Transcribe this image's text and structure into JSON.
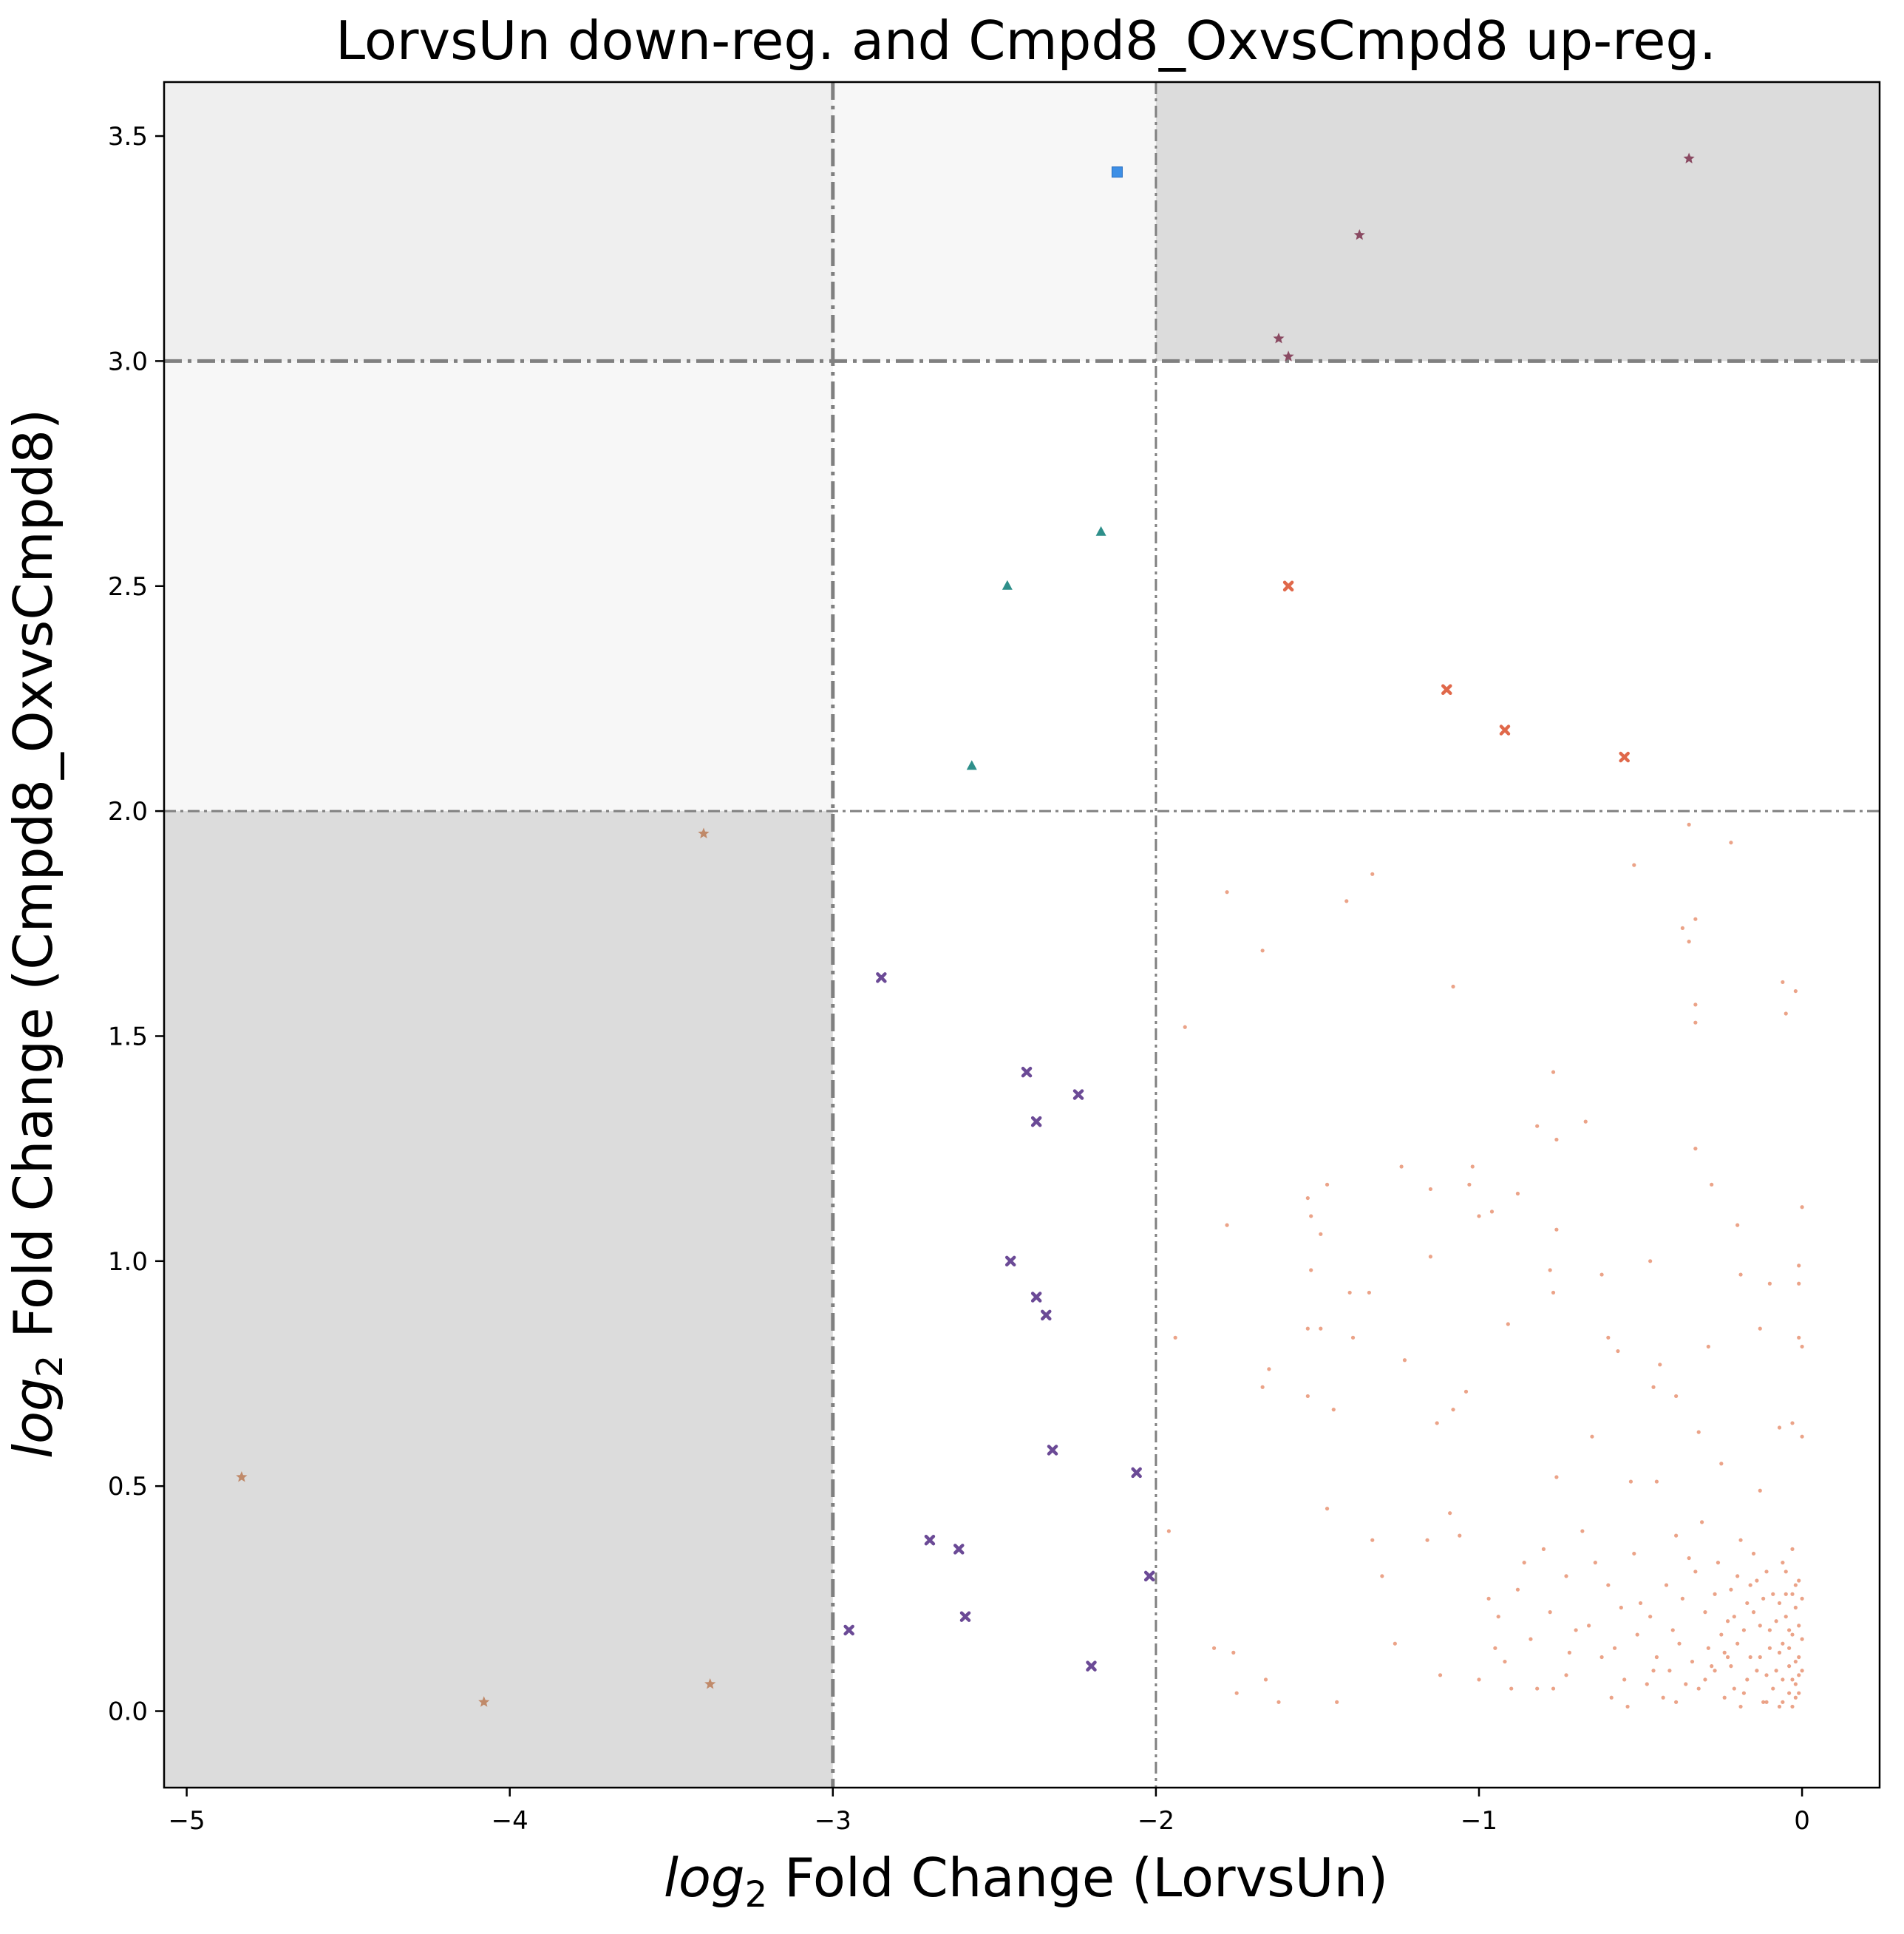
{
  "chart_data": {
    "type": "scatter",
    "title": "LorvsUn down-reg. and Cmpd8_OxvsCmpd8 up-reg.",
    "xlabel": {
      "log": "log",
      "sub": "2",
      "rest": " Fold Change (LorvsUn)"
    },
    "ylabel": {
      "log": "log",
      "sub": "2",
      "rest": " Fold Change (Cmpd8_OxvsCmpd8)"
    },
    "xlim": [
      -5.07,
      0.24
    ],
    "ylim": [
      -0.17,
      3.62
    ],
    "x_ticks": [
      -5,
      -4,
      -3,
      -2,
      -1,
      0
    ],
    "x_tick_labels": [
      "−5",
      "−4",
      "−3",
      "−2",
      "−1",
      "0"
    ],
    "y_ticks": [
      0.0,
      0.5,
      1.0,
      1.5,
      2.0,
      2.5,
      3.0,
      3.5
    ],
    "y_tick_labels": [
      "0.0",
      "0.5",
      "1.0",
      "1.5",
      "2.0",
      "2.5",
      "3.0",
      "3.5"
    ],
    "grid": false,
    "legend": "none",
    "threshold_lines": {
      "x": [
        {
          "value": -3,
          "style": "thick"
        },
        {
          "value": -2,
          "style": "thin"
        }
      ],
      "y": [
        {
          "value": 3,
          "style": "thick"
        },
        {
          "value": 2,
          "style": "thin"
        }
      ]
    },
    "shaded_regions": [
      {
        "x": [
          -5.07,
          -3
        ],
        "y": [
          2,
          3.62
        ],
        "color": "#efefef"
      },
      {
        "x": [
          -3,
          -2
        ],
        "y": [
          3,
          3.62
        ],
        "color": "#f7f7f7"
      },
      {
        "x": [
          -5.07,
          -3
        ],
        "y": [
          2,
          3
        ],
        "color": "#f7f7f7"
      },
      {
        "x": [
          -2,
          0.24
        ],
        "y": [
          3,
          3.62
        ],
        "color": "#dcdcdc"
      },
      {
        "x": [
          -5.07,
          -3
        ],
        "y": [
          -0.17,
          2
        ],
        "color": "#dcdcdc"
      }
    ],
    "series": [
      {
        "marker": "square",
        "color": "#3d8fe6",
        "points": [
          [
            -2.12,
            3.42
          ]
        ]
      },
      {
        "marker": "star",
        "color": "#8a4a62",
        "points": [
          [
            -0.35,
            3.45
          ],
          [
            -1.37,
            3.28
          ],
          [
            -1.62,
            3.05
          ],
          [
            -1.59,
            3.01
          ]
        ]
      },
      {
        "marker": "triangle",
        "color": "#2e8f8a",
        "points": [
          [
            -2.17,
            2.62
          ],
          [
            -2.46,
            2.5
          ],
          [
            -2.57,
            2.1
          ]
        ]
      },
      {
        "marker": "x",
        "color": "#e0684a",
        "points": [
          [
            -1.59,
            2.5
          ],
          [
            -1.1,
            2.27
          ],
          [
            -0.92,
            2.18
          ],
          [
            -0.55,
            2.12
          ]
        ]
      },
      {
        "marker": "star",
        "color": "#c08a6a",
        "points": [
          [
            -3.4,
            1.95
          ],
          [
            -4.83,
            0.52
          ],
          [
            -4.08,
            0.02
          ],
          [
            -3.38,
            0.06
          ]
        ]
      },
      {
        "marker": "x",
        "color": "#6b4a96",
        "points": [
          [
            -2.85,
            1.63
          ],
          [
            -2.4,
            1.42
          ],
          [
            -2.24,
            1.37
          ],
          [
            -2.37,
            1.31
          ],
          [
            -2.45,
            1.0
          ],
          [
            -2.37,
            0.92
          ],
          [
            -2.34,
            0.88
          ],
          [
            -2.32,
            0.58
          ],
          [
            -2.06,
            0.53
          ],
          [
            -2.7,
            0.38
          ],
          [
            -2.61,
            0.36
          ],
          [
            -2.02,
            0.3
          ],
          [
            -2.59,
            0.21
          ],
          [
            -2.95,
            0.18
          ],
          [
            -2.2,
            0.1
          ]
        ]
      },
      {
        "marker": "dot",
        "color": "#e89373",
        "points": [
          [
            -0.35,
            1.97
          ],
          [
            -0.22,
            1.93
          ],
          [
            -0.52,
            1.88
          ],
          [
            -1.33,
            1.86
          ],
          [
            -1.78,
            1.82
          ],
          [
            -1.41,
            1.8
          ],
          [
            -0.33,
            1.76
          ],
          [
            -0.37,
            1.74
          ],
          [
            -0.35,
            1.71
          ],
          [
            -1.67,
            1.69
          ],
          [
            -0.06,
            1.62
          ],
          [
            -1.08,
            1.61
          ],
          [
            -0.02,
            1.6
          ],
          [
            -0.33,
            1.57
          ],
          [
            -0.05,
            1.55
          ],
          [
            -0.33,
            1.53
          ],
          [
            -1.91,
            1.52
          ],
          [
            -0.77,
            1.42
          ],
          [
            -0.67,
            1.31
          ],
          [
            -0.82,
            1.3
          ],
          [
            -0.76,
            1.27
          ],
          [
            -0.33,
            1.25
          ],
          [
            -1.24,
            1.21
          ],
          [
            -1.02,
            1.21
          ],
          [
            -1.03,
            1.17
          ],
          [
            -1.47,
            1.17
          ],
          [
            -1.15,
            1.16
          ],
          [
            -0.28,
            1.17
          ],
          [
            -0.88,
            1.15
          ],
          [
            -1.53,
            1.14
          ],
          [
            -1.52,
            1.1
          ],
          [
            -1.0,
            1.1
          ],
          [
            -0.96,
            1.11
          ],
          [
            -0.0,
            1.12
          ],
          [
            -0.2,
            1.08
          ],
          [
            -1.78,
            1.08
          ],
          [
            -1.49,
            1.06
          ],
          [
            -0.76,
            1.07
          ],
          [
            -1.15,
            1.01
          ],
          [
            -0.47,
            1.0
          ],
          [
            -0.78,
            0.98
          ],
          [
            -1.52,
            0.98
          ],
          [
            -0.62,
            0.97
          ],
          [
            -0.19,
            0.97
          ],
          [
            -0.01,
            0.99
          ],
          [
            -0.01,
            0.95
          ],
          [
            -1.4,
            0.93
          ],
          [
            -1.34,
            0.93
          ],
          [
            -0.77,
            0.93
          ],
          [
            -0.1,
            0.95
          ],
          [
            -1.94,
            0.83
          ],
          [
            -0.91,
            0.86
          ],
          [
            -1.39,
            0.83
          ],
          [
            -0.6,
            0.83
          ],
          [
            -1.53,
            0.85
          ],
          [
            -1.49,
            0.85
          ],
          [
            -0.13,
            0.85
          ],
          [
            -0.01,
            0.83
          ],
          [
            -0.29,
            0.81
          ],
          [
            -0.57,
            0.8
          ],
          [
            -0.0,
            0.81
          ],
          [
            -1.23,
            0.78
          ],
          [
            -1.65,
            0.76
          ],
          [
            -0.44,
            0.77
          ],
          [
            -0.46,
            0.72
          ],
          [
            -1.67,
            0.72
          ],
          [
            -1.04,
            0.71
          ],
          [
            -0.39,
            0.7
          ],
          [
            -1.53,
            0.7
          ],
          [
            -1.08,
            0.67
          ],
          [
            -1.45,
            0.67
          ],
          [
            -1.13,
            0.64
          ],
          [
            -0.32,
            0.62
          ],
          [
            -0.07,
            0.63
          ],
          [
            -0.0,
            0.61
          ],
          [
            -0.03,
            0.64
          ],
          [
            -0.65,
            0.61
          ],
          [
            -0.25,
            0.55
          ],
          [
            -0.13,
            0.49
          ],
          [
            -0.45,
            0.51
          ],
          [
            -0.39,
            0.39
          ],
          [
            -0.76,
            0.52
          ],
          [
            -0.53,
            0.51
          ],
          [
            -1.96,
            0.4
          ],
          [
            -1.16,
            0.38
          ],
          [
            -0.73,
            0.3
          ],
          [
            -1.3,
            0.3
          ],
          [
            -0.86,
            0.33
          ],
          [
            -1.09,
            0.44
          ],
          [
            -1.47,
            0.45
          ],
          [
            -1.62,
            0.02
          ],
          [
            -1.82,
            0.14
          ],
          [
            -1.76,
            0.13
          ],
          [
            -1.26,
            0.15
          ],
          [
            -1.66,
            0.07
          ],
          [
            -1.44,
            0.02
          ],
          [
            -1.75,
            0.04
          ],
          [
            -0.95,
            0.14
          ],
          [
            -0.92,
            0.11
          ],
          [
            -0.82,
            0.05
          ],
          [
            -0.77,
            0.05
          ],
          [
            -1.12,
            0.08
          ],
          [
            -1.33,
            0.38
          ],
          [
            -1.06,
            0.39
          ],
          [
            -0.97,
            0.25
          ],
          [
            -0.78,
            0.22
          ],
          [
            -0.7,
            0.18
          ],
          [
            -0.6,
            0.28
          ],
          [
            -0.55,
            0.07
          ],
          [
            -0.5,
            0.24
          ],
          [
            -0.45,
            0.12
          ],
          [
            -0.4,
            0.18
          ],
          [
            -0.36,
            0.06
          ],
          [
            -0.33,
            0.31
          ],
          [
            -0.3,
            0.22
          ],
          [
            -0.27,
            0.09
          ],
          [
            -0.24,
            0.03
          ],
          [
            -0.22,
            0.27
          ],
          [
            -0.2,
            0.15
          ],
          [
            -0.18,
            0.04
          ],
          [
            -0.15,
            0.35
          ],
          [
            -0.13,
            0.19
          ],
          [
            -0.11,
            0.08
          ],
          [
            -0.09,
            0.26
          ],
          [
            -0.07,
            0.13
          ],
          [
            -0.06,
            0.02
          ],
          [
            -0.05,
            0.31
          ],
          [
            -0.04,
            0.18
          ],
          [
            -0.03,
            0.07
          ],
          [
            -0.02,
            0.23
          ],
          [
            -0.02,
            0.11
          ],
          [
            -0.01,
            0.04
          ],
          [
            -0.01,
            0.29
          ],
          [
            -0.0,
            0.16
          ],
          [
            -0.68,
            0.4
          ],
          [
            -0.62,
            0.12
          ],
          [
            -0.52,
            0.35
          ],
          [
            -0.48,
            0.06
          ],
          [
            -0.42,
            0.28
          ],
          [
            -0.38,
            0.15
          ],
          [
            -0.31,
            0.42
          ],
          [
            -0.28,
            0.1
          ],
          [
            -0.26,
            0.33
          ],
          [
            -0.23,
            0.2
          ],
          [
            -0.21,
            0.05
          ],
          [
            -0.19,
            0.38
          ],
          [
            -0.17,
            0.24
          ],
          [
            -0.16,
            0.12
          ],
          [
            -0.14,
            0.29
          ],
          [
            -0.12,
            0.02
          ],
          [
            -0.1,
            0.18
          ],
          [
            -0.08,
            0.09
          ],
          [
            -0.06,
            0.33
          ],
          [
            -0.05,
            0.21
          ],
          [
            -0.04,
            0.14
          ],
          [
            -0.03,
            0.26
          ],
          [
            -0.02,
            0.06
          ],
          [
            -0.01,
            0.19
          ],
          [
            -0.0,
            0.09
          ],
          [
            -0.88,
            0.27
          ],
          [
            -0.84,
            0.16
          ],
          [
            -0.73,
            0.08
          ],
          [
            -0.66,
            0.19
          ],
          [
            -0.58,
            0.14
          ],
          [
            -0.54,
            0.01
          ],
          [
            -0.47,
            0.21
          ],
          [
            -0.43,
            0.03
          ],
          [
            -0.37,
            0.25
          ],
          [
            -0.34,
            0.11
          ],
          [
            -0.29,
            0.14
          ],
          [
            -0.25,
            0.17
          ],
          [
            -0.22,
            0.1
          ],
          [
            -0.2,
            0.3
          ],
          [
            -0.17,
            0.07
          ],
          [
            -0.15,
            0.22
          ],
          [
            -0.13,
            0.12
          ],
          [
            -0.11,
            0.31
          ],
          [
            -0.09,
            0.05
          ],
          [
            -0.07,
            0.24
          ],
          [
            -0.06,
            0.15
          ],
          [
            -0.04,
            0.1
          ],
          [
            -0.03,
            0.36
          ],
          [
            -0.02,
            0.03
          ],
          [
            -0.01,
            0.12
          ],
          [
            -1.0,
            0.07
          ],
          [
            -0.94,
            0.21
          ],
          [
            -0.8,
            0.36
          ],
          [
            -0.64,
            0.33
          ],
          [
            -0.56,
            0.23
          ],
          [
            -0.41,
            0.09
          ],
          [
            -0.35,
            0.34
          ],
          [
            -0.32,
            0.05
          ],
          [
            -0.27,
            0.26
          ],
          [
            -0.24,
            0.13
          ],
          [
            -0.21,
            0.21
          ],
          [
            -0.18,
            0.18
          ],
          [
            -0.16,
            0.28
          ],
          [
            -0.14,
            0.09
          ],
          [
            -0.12,
            0.25
          ],
          [
            -0.1,
            0.14
          ],
          [
            -0.08,
            0.2
          ],
          [
            -0.06,
            0.07
          ],
          [
            -0.05,
            0.26
          ],
          [
            -0.04,
            0.04
          ],
          [
            -0.03,
            0.17
          ],
          [
            -0.02,
            0.28
          ],
          [
            -0.01,
            0.08
          ],
          [
            -0.0,
            0.25
          ],
          [
            -0.9,
            0.05
          ],
          [
            -0.72,
            0.13
          ],
          [
            -0.59,
            0.03
          ],
          [
            -0.51,
            0.17
          ],
          [
            -0.46,
            0.09
          ],
          [
            -0.39,
            0.02
          ],
          [
            -0.3,
            0.07
          ],
          [
            -0.23,
            0.12
          ],
          [
            -0.19,
            0.01
          ],
          [
            -0.11,
            0.02
          ],
          [
            -0.07,
            0.01
          ],
          [
            -0.03,
            0.01
          ]
        ]
      }
    ]
  }
}
